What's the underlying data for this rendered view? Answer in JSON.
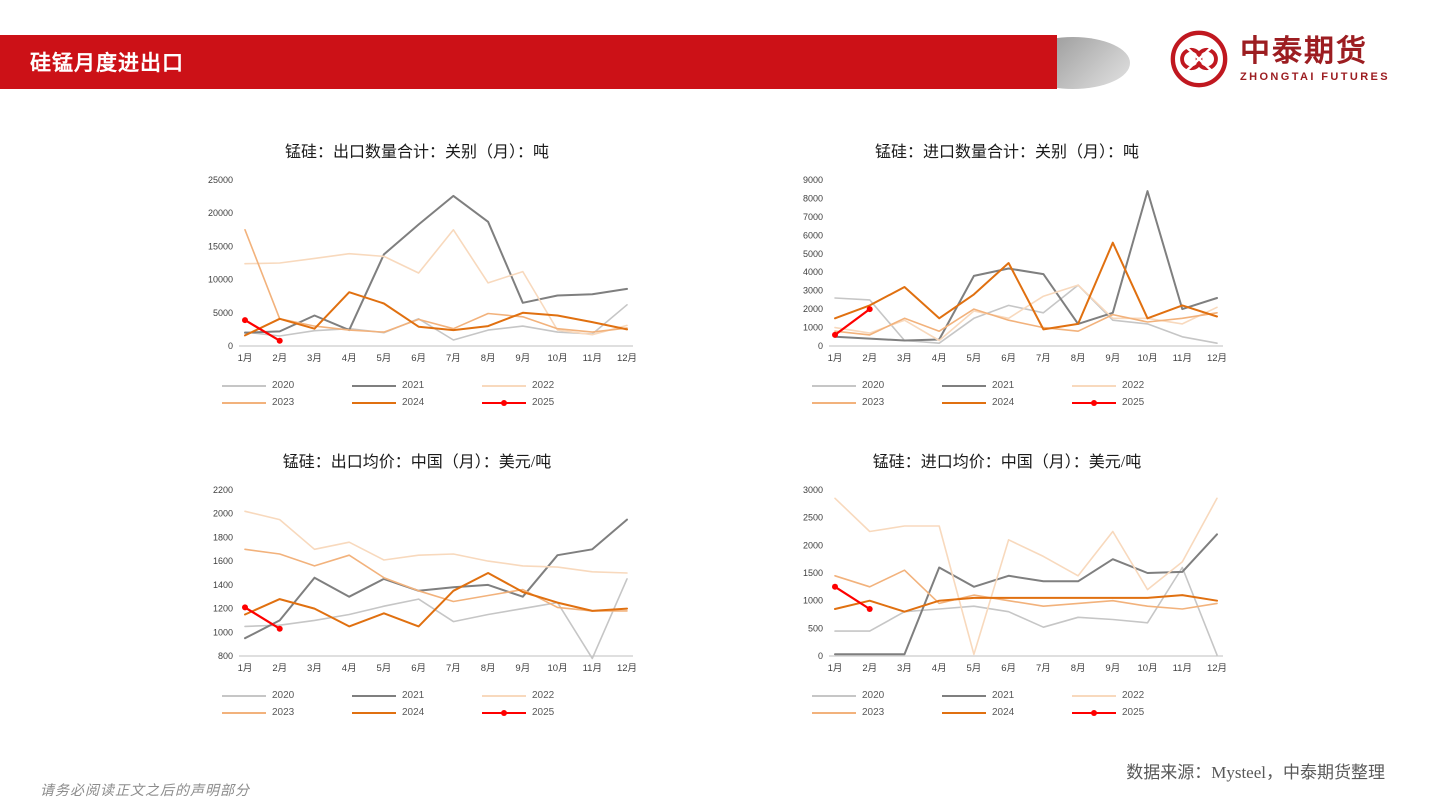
{
  "banner": {
    "title": "硅锰月度进出口",
    "color": "#cc1117"
  },
  "logo": {
    "name": "中泰期货",
    "subtitle": "ZHONGTAI FUTURES",
    "color": "#9c1d21"
  },
  "footer": {
    "disclaimer": "请务必阅读正文之后的声明部分",
    "source": "数据来源：Mysteel，中泰期货整理"
  },
  "charts": [
    {
      "title": "锰硅：出口数量合计：关别（月）：吨",
      "chart_data": {
        "type": "line",
        "categories": [
          "1月",
          "2月",
          "3月",
          "4月",
          "5月",
          "6月",
          "7月",
          "8月",
          "9月",
          "10月",
          "11月",
          "12月"
        ],
        "ylim": [
          0,
          25000
        ],
        "ystep": 5000,
        "grid": false,
        "legend_position": "bottom",
        "series": [
          {
            "name": "2020",
            "color": "#c6c6c6",
            "values": [
              2100,
              1500,
              2300,
              2600,
              2000,
              4100,
              900,
              2400,
              3000,
              2100,
              1800,
              6200
            ]
          },
          {
            "name": "2021",
            "color": "#7f7f7f",
            "width": 2,
            "values": [
              2000,
              2200,
              4600,
              2400,
              13800,
              18300,
              22600,
              18700,
              6500,
              7600,
              7800,
              8600
            ]
          },
          {
            "name": "2022",
            "color": "#f8d9bd",
            "values": [
              12400,
              12500,
              13200,
              13900,
              13500,
              11000,
              17500,
              9500,
              11200,
              2400,
              1700,
              3100
            ]
          },
          {
            "name": "2023",
            "color": "#f2b27c",
            "values": [
              17500,
              4100,
              3000,
              2400,
              2100,
              4000,
              2600,
              4900,
              4400,
              2600,
              2100,
              2700
            ]
          },
          {
            "name": "2024",
            "color": "#e07010",
            "width": 2,
            "values": [
              1600,
              4100,
              2600,
              8100,
              6400,
              2900,
              2400,
              3000,
              5000,
              4600,
              3600,
              2500
            ]
          },
          {
            "name": "2025",
            "color": "#fe0000",
            "width": 2.2,
            "markers": true,
            "values": [
              3900,
              800,
              null,
              null,
              null,
              null,
              null,
              null,
              null,
              null,
              null,
              null
            ]
          }
        ]
      }
    },
    {
      "title": "锰硅：进口数量合计：关别（月）：吨",
      "chart_data": {
        "type": "line",
        "categories": [
          "1月",
          "2月",
          "3月",
          "4月",
          "5月",
          "6月",
          "7月",
          "8月",
          "9月",
          "10月",
          "11月",
          "12月"
        ],
        "ylim": [
          0,
          9000
        ],
        "ystep": 1000,
        "grid": false,
        "legend_position": "bottom",
        "series": [
          {
            "name": "2020",
            "color": "#c6c6c6",
            "values": [
              2600,
              2500,
              300,
              150,
              1500,
              2200,
              1800,
              3300,
              1400,
              1200,
              500,
              150
            ]
          },
          {
            "name": "2021",
            "color": "#7f7f7f",
            "width": 2,
            "values": [
              500,
              400,
              300,
              350,
              3800,
              4200,
              3900,
              1200,
              1800,
              8400,
              2000,
              2600
            ]
          },
          {
            "name": "2022",
            "color": "#f8d9bd",
            "values": [
              1000,
              700,
              1400,
              300,
              1900,
              1500,
              2700,
              3300,
              1500,
              1500,
              1200,
              2100
            ]
          },
          {
            "name": "2023",
            "color": "#f2b27c",
            "values": [
              800,
              600,
              1500,
              800,
              2000,
              1400,
              1000,
              800,
              1700,
              1300,
              1500,
              1800
            ]
          },
          {
            "name": "2024",
            "color": "#e07010",
            "width": 2,
            "values": [
              1500,
              2200,
              3200,
              1500,
              2800,
              4500,
              900,
              1200,
              5600,
              1500,
              2200,
              1600
            ]
          },
          {
            "name": "2025",
            "color": "#fe0000",
            "width": 2.2,
            "markers": true,
            "values": [
              600,
              2000,
              null,
              null,
              null,
              null,
              null,
              null,
              null,
              null,
              null,
              null
            ]
          }
        ]
      }
    },
    {
      "title": "锰硅：出口均价：中国（月）：美元/吨",
      "chart_data": {
        "type": "line",
        "categories": [
          "1月",
          "2月",
          "3月",
          "4月",
          "5月",
          "6月",
          "7月",
          "8月",
          "9月",
          "10月",
          "11月",
          "12月"
        ],
        "ylim": [
          800,
          2200
        ],
        "ystep": 200,
        "grid": false,
        "legend_position": "bottom",
        "series": [
          {
            "name": "2020",
            "color": "#c6c6c6",
            "values": [
              1050,
              1060,
              1100,
              1150,
              1220,
              1280,
              1090,
              1150,
              1200,
              1250,
              780,
              1450
            ]
          },
          {
            "name": "2021",
            "color": "#7f7f7f",
            "width": 2,
            "values": [
              950,
              1100,
              1460,
              1300,
              1450,
              1350,
              1380,
              1400,
              1300,
              1650,
              1700,
              1950
            ]
          },
          {
            "name": "2022",
            "color": "#f8d9bd",
            "values": [
              2020,
              1950,
              1700,
              1760,
              1610,
              1650,
              1660,
              1600,
              1560,
              1550,
              1510,
              1500
            ]
          },
          {
            "name": "2023",
            "color": "#f2b27c",
            "values": [
              1700,
              1660,
              1560,
              1650,
              1460,
              1350,
              1260,
              1310,
              1360,
              1210,
              1180,
              1180
            ]
          },
          {
            "name": "2024",
            "color": "#e07010",
            "width": 2,
            "values": [
              1150,
              1280,
              1200,
              1050,
              1160,
              1050,
              1350,
              1500,
              1340,
              1250,
              1180,
              1200
            ]
          },
          {
            "name": "2025",
            "color": "#fe0000",
            "width": 2.2,
            "markers": true,
            "values": [
              1210,
              1030,
              null,
              null,
              null,
              null,
              null,
              null,
              null,
              null,
              null,
              null
            ]
          }
        ]
      }
    },
    {
      "title": "锰硅：进口均价：中国（月）：美元/吨",
      "chart_data": {
        "type": "line",
        "categories": [
          "1月",
          "2月",
          "3月",
          "4月",
          "5月",
          "6月",
          "7月",
          "8月",
          "9月",
          "10月",
          "11月",
          "12月"
        ],
        "ylim": [
          0,
          3000
        ],
        "ystep": 500,
        "grid": false,
        "legend_position": "bottom",
        "series": [
          {
            "name": "2020",
            "color": "#c6c6c6",
            "values": [
              450,
              450,
              800,
              850,
              900,
              800,
              520,
              700,
              660,
              600,
              1600,
              20
            ]
          },
          {
            "name": "2021",
            "color": "#7f7f7f",
            "width": 2,
            "values": [
              30,
              30,
              30,
              1600,
              1250,
              1450,
              1350,
              1350,
              1750,
              1500,
              1520,
              2200
            ]
          },
          {
            "name": "2022",
            "color": "#f8d9bd",
            "values": [
              2850,
              2250,
              2350,
              2350,
              30,
              2100,
              1800,
              1450,
              2250,
              1200,
              1700,
              2850
            ]
          },
          {
            "name": "2023",
            "color": "#f2b27c",
            "values": [
              1450,
              1250,
              1550,
              950,
              1100,
              1000,
              900,
              950,
              1000,
              900,
              850,
              950
            ]
          },
          {
            "name": "2024",
            "color": "#e07010",
            "width": 2,
            "values": [
              850,
              1000,
              800,
              1000,
              1050,
              1050,
              1050,
              1050,
              1050,
              1050,
              1100,
              1000
            ]
          },
          {
            "name": "2025",
            "color": "#fe0000",
            "width": 2.2,
            "markers": true,
            "values": [
              1250,
              850,
              null,
              null,
              null,
              null,
              null,
              null,
              null,
              null,
              null,
              null
            ]
          }
        ]
      }
    }
  ]
}
